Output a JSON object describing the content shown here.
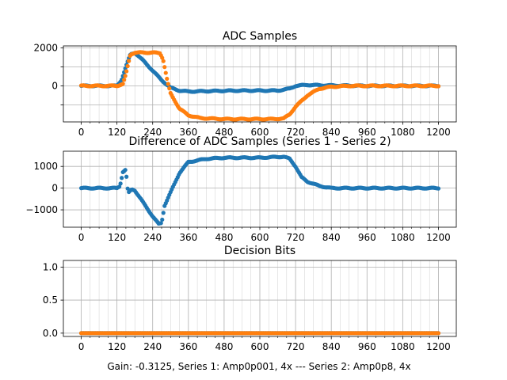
{
  "figure_caption": "Gain: -0.3125, Series 1: Amp0p001, 4x --- Series 2: Amp0p8, 4x",
  "colors": {
    "series1": "#1f77b4",
    "series2": "#ff7f0e",
    "grid": "#b0b0b0",
    "axis": "#000000"
  },
  "chart_data": [
    {
      "type": "scatter",
      "title": "ADC Samples",
      "xlabel": "",
      "ylabel": "",
      "xlim": [
        -60,
        1260
      ],
      "ylim": [
        -1900,
        2100
      ],
      "xticks": [
        0,
        120,
        240,
        360,
        480,
        600,
        720,
        840,
        960,
        1080,
        1200
      ],
      "yticks": [
        -1000,
        0,
        1000,
        2000
      ],
      "ytick_labels": [
        "",
        "0",
        "",
        "2000"
      ],
      "grid": true,
      "minor_x_grid_step": 30,
      "series": [
        {
          "color": "#1f77b4",
          "x": [
            0,
            60,
            120,
            135,
            150,
            165,
            180,
            210,
            240,
            270,
            300,
            330,
            360,
            420,
            480,
            540,
            600,
            660,
            700,
            720,
            760,
            800,
            840,
            900,
            960,
            1020,
            1080,
            1140,
            1200
          ],
          "y": [
            0,
            0,
            0,
            300,
            1000,
            1650,
            1750,
            1300,
            800,
            300,
            -100,
            -250,
            -300,
            -280,
            -260,
            -250,
            -250,
            -250,
            -150,
            0,
            50,
            30,
            20,
            10,
            0,
            0,
            0,
            0,
            0
          ]
        },
        {
          "color": "#ff7f0e",
          "x": [
            0,
            60,
            120,
            140,
            150,
            165,
            180,
            200,
            240,
            265,
            275,
            290,
            300,
            330,
            360,
            400,
            480,
            560,
            640,
            680,
            700,
            720,
            760,
            800,
            840,
            900,
            960,
            1080,
            1200
          ],
          "y": [
            0,
            0,
            0,
            100,
            600,
            1650,
            1750,
            1750,
            1750,
            1720,
            1400,
            200,
            -400,
            -1200,
            -1550,
            -1700,
            -1750,
            -1750,
            -1750,
            -1720,
            -1500,
            -1100,
            -500,
            -150,
            -50,
            0,
            0,
            0,
            0
          ]
        }
      ]
    },
    {
      "type": "scatter",
      "title": "Difference of ADC Samples (Series 1 - Series 2)",
      "xlabel": "",
      "ylabel": "",
      "xlim": [
        -60,
        1260
      ],
      "ylim": [
        -1800,
        1700
      ],
      "xticks": [
        0,
        120,
        240,
        360,
        480,
        600,
        720,
        840,
        960,
        1080,
        1200
      ],
      "yticks": [
        -1000,
        0,
        1000
      ],
      "ytick_labels": [
        "−1000",
        "0",
        "1000"
      ],
      "grid": true,
      "minor_x_grid_step": 30,
      "series": [
        {
          "color": "#1f77b4",
          "x": [
            0,
            60,
            120,
            130,
            140,
            150,
            155,
            160,
            170,
            180,
            210,
            240,
            260,
            270,
            280,
            300,
            330,
            360,
            420,
            480,
            600,
            680,
            700,
            720,
            740,
            760,
            800,
            840,
            900,
            1200
          ],
          "y": [
            0,
            0,
            0,
            100,
            750,
            850,
            0,
            -200,
            -50,
            -100,
            -700,
            -1300,
            -1650,
            -1600,
            -800,
            -200,
            700,
            1200,
            1350,
            1400,
            1400,
            1450,
            1350,
            1000,
            500,
            300,
            100,
            0,
            0,
            0
          ]
        }
      ]
    },
    {
      "type": "scatter",
      "title": "Decision Bits",
      "xlabel": "Gain: -0.3125, Series 1: Amp0p001, 4x --- Series 2: Amp0p8, 4x",
      "ylabel": "",
      "xlim": [
        -60,
        1260
      ],
      "ylim": [
        -0.05,
        1.1
      ],
      "xticks": [
        0,
        120,
        240,
        360,
        480,
        600,
        720,
        840,
        960,
        1080,
        1200
      ],
      "yticks": [
        0.0,
        0.5,
        1.0
      ],
      "ytick_labels": [
        "0.0",
        "0.5",
        "1.0"
      ],
      "grid": true,
      "minor_x_grid_step": 30,
      "series": [
        {
          "color": "#1f77b4",
          "x": [
            0,
            1200
          ],
          "y": [
            0,
            0
          ]
        },
        {
          "color": "#ff7f0e",
          "x": [
            0,
            1200
          ],
          "y": [
            0,
            0
          ]
        }
      ]
    }
  ]
}
